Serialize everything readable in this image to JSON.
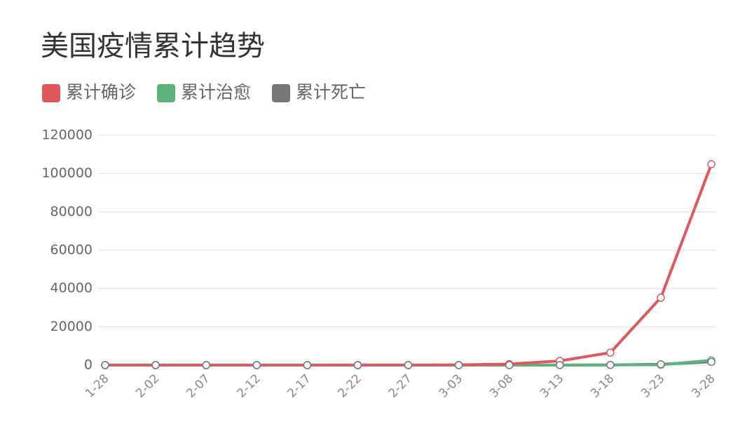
{
  "chart_data": {
    "type": "line",
    "title": "美国疫情累计趋势",
    "categories": [
      "1-28",
      "2-02",
      "2-07",
      "2-12",
      "2-17",
      "2-22",
      "2-27",
      "3-03",
      "3-08",
      "3-13",
      "3-18",
      "3-23",
      "3-28"
    ],
    "series": [
      {
        "name": "累计确诊",
        "color": "#e0585e",
        "values": [
          5,
          11,
          12,
          13,
          15,
          35,
          60,
          120,
          550,
          2200,
          6500,
          35200,
          104900
        ]
      },
      {
        "name": "累计治愈",
        "color": "#5bb37a",
        "values": [
          0,
          0,
          3,
          3,
          3,
          5,
          7,
          8,
          8,
          15,
          100,
          180,
          2500
        ]
      },
      {
        "name": "累计死亡",
        "color": "#77777a",
        "values": [
          0,
          0,
          0,
          0,
          0,
          0,
          0,
          9,
          22,
          50,
          110,
          450,
          1700
        ]
      }
    ],
    "ylim": [
      0,
      120000
    ],
    "yticks": [
      0,
      20000,
      40000,
      60000,
      80000,
      100000,
      120000
    ],
    "grid": true
  }
}
